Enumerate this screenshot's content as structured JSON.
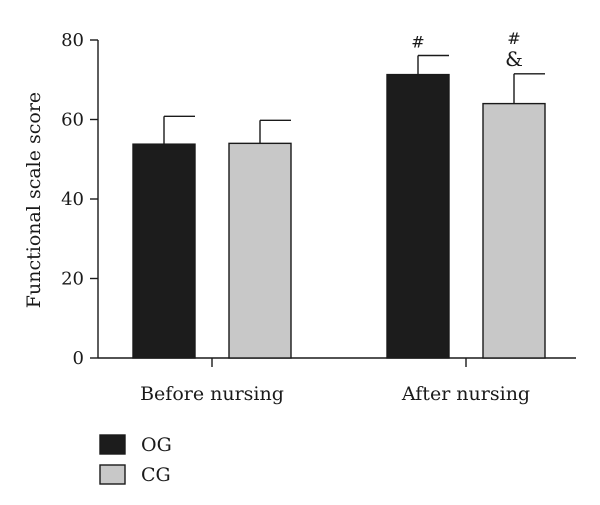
{
  "chart_data": {
    "type": "bar",
    "categories": [
      "Before nursing",
      "After nursing"
    ],
    "series": [
      {
        "name": "OG",
        "values": [
          53.8,
          71.3
        ],
        "errors": [
          7.0,
          4.8
        ]
      },
      {
        "name": "CG",
        "values": [
          54.0,
          64.0
        ],
        "errors": [
          5.8,
          7.5
        ]
      }
    ],
    "annotations": [
      {
        "category": "After nursing",
        "series": "OG",
        "text": "#"
      },
      {
        "category": "After nursing",
        "series": "CG",
        "text": "#"
      },
      {
        "category": "After nursing",
        "series": "CG",
        "text": "&"
      }
    ],
    "ylabel": "Functional scale score",
    "ylim": [
      0,
      80
    ],
    "yticks": [
      0,
      20,
      40,
      60,
      80
    ],
    "grid": false,
    "legend_position": "bottom-left",
    "colors": {
      "OG": "#1c1c1c",
      "CG": "#c8c8c8",
      "outline": "#1a1a1a"
    }
  }
}
